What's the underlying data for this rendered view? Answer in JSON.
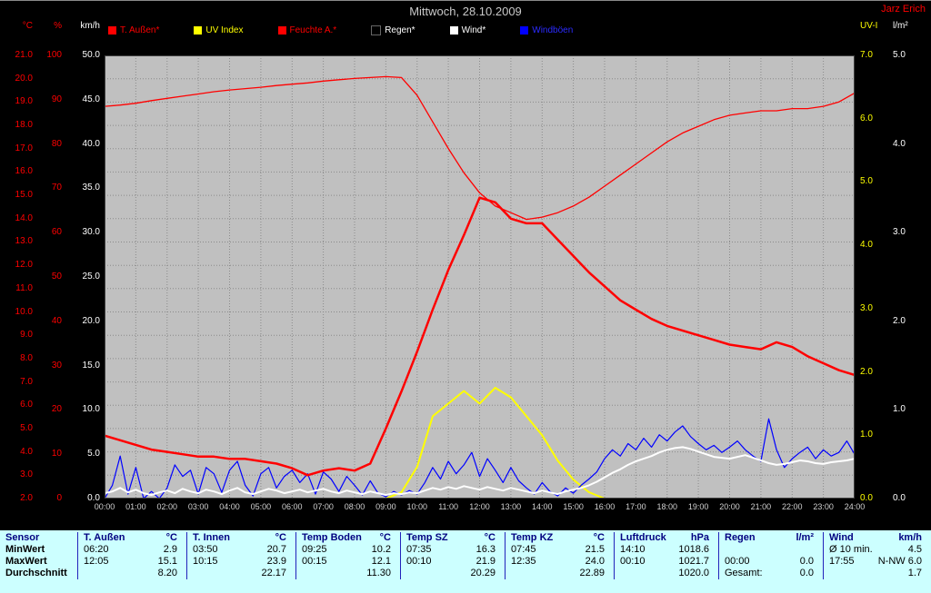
{
  "window": {
    "title": "Mittwoch, 28.10.2009",
    "author": "Jarz Erich"
  },
  "colors": {
    "background": "#000000",
    "plot_background": "#c0c0c0",
    "grid": "#8a8a8a",
    "table_background": "#ccffff",
    "table_divider": "#2222bb",
    "table_header_text": "#000080",
    "temperature_red": "#ff0000",
    "uv_yellow": "#ffff00",
    "wind_white": "#ffffff",
    "gust_blue": "#0000ff"
  },
  "axes": {
    "left": [
      {
        "title": "°C",
        "color": "#ff0000",
        "min": 2,
        "max": 21,
        "step": 1,
        "decimals": 1
      },
      {
        "title": "%",
        "color": "#ff0000",
        "min": 0,
        "max": 100,
        "step": 10,
        "decimals": 0
      },
      {
        "title": "km/h",
        "color": "#ffffff",
        "min": 0,
        "max": 50,
        "step": 5,
        "decimals": 1
      }
    ],
    "right": [
      {
        "title": "UV-I",
        "color": "#ffff00",
        "min": 0,
        "max": 7,
        "step": 1,
        "decimals": 1
      },
      {
        "title": "l/m²",
        "color": "#ffffff",
        "min": 0,
        "max": 5,
        "step": 1,
        "decimals": 1
      }
    ],
    "x": {
      "labels": [
        "00:00",
        "01:00",
        "02:00",
        "03:00",
        "04:00",
        "05:00",
        "06:00",
        "07:00",
        "08:00",
        "09:00",
        "10:00",
        "11:00",
        "12:00",
        "13:00",
        "14:00",
        "15:00",
        "16:00",
        "17:00",
        "18:00",
        "19:00",
        "20:00",
        "21:00",
        "22:00",
        "23:00",
        "24:00"
      ]
    }
  },
  "legend": [
    {
      "label": "T. Außen*",
      "color": "#ff0000",
      "text": "#ff0000"
    },
    {
      "label": "UV Index",
      "color": "#ffff00",
      "text": "#ffff00"
    },
    {
      "label": "Feuchte A.*",
      "color": "#ff0000",
      "text": "#ff0000"
    },
    {
      "label": "Regen*",
      "color": "#000000",
      "text": "#ffffff"
    },
    {
      "label": "Wind*",
      "color": "#ffffff",
      "text": "#ffffff"
    },
    {
      "label": "Windböen",
      "color": "#0000ff",
      "text": "#2b2bff"
    }
  ],
  "chart_data": {
    "type": "line",
    "title": "Mittwoch, 28.10.2009",
    "x_unit": "hours",
    "x_range": [
      0,
      24
    ],
    "grid": true,
    "legend_position": "top",
    "series": [
      {
        "name": "Regen",
        "unit": "l/m²",
        "color": "#000000",
        "width": 1.5,
        "axis_min": 0,
        "axis_max": 5,
        "step_h": 12,
        "values": [
          0,
          0,
          0
        ]
      },
      {
        "name": "UV Index",
        "unit": "UV-I",
        "color": "#ffff00",
        "width": 2,
        "axis_min": 0,
        "axis_max": 7,
        "step_h": 0.5,
        "values": [
          0,
          0,
          0,
          0,
          0,
          0,
          0,
          0,
          0,
          0,
          0,
          0,
          0,
          0,
          0,
          0,
          0,
          0,
          0,
          0.1,
          0.5,
          1.3,
          1.5,
          1.7,
          1.5,
          1.75,
          1.6,
          1.3,
          1.0,
          0.6,
          0.3,
          0.1,
          0,
          0,
          0,
          0,
          0,
          0,
          0,
          0,
          0,
          0,
          0,
          0,
          0,
          0,
          0,
          0,
          0
        ]
      },
      {
        "name": "Windböen",
        "unit": "km/h",
        "color": "#0000ff",
        "width": 1.2,
        "axis_min": 0,
        "axis_max": 50,
        "step_h": 0.25,
        "values": [
          0.0,
          1.5,
          4.8,
          0.5,
          3.5,
          0.0,
          0.8,
          0.0,
          1.2,
          3.8,
          2.5,
          3.2,
          0.5,
          3.5,
          2.8,
          0.7,
          3.2,
          4.2,
          1.5,
          0.3,
          2.8,
          3.5,
          1.2,
          2.5,
          3.2,
          1.8,
          2.8,
          0.5,
          3.0,
          2.2,
          0.8,
          2.5,
          1.5,
          0.4,
          2.0,
          0.6,
          0.2,
          0.8,
          0.4,
          0.9,
          0.5,
          1.8,
          3.5,
          2.2,
          4.2,
          2.8,
          3.8,
          5.2,
          2.5,
          4.5,
          3.2,
          1.8,
          3.5,
          2.0,
          1.2,
          0.5,
          1.8,
          0.8,
          0.3,
          1.2,
          0.6,
          1.5,
          2.2,
          3.0,
          4.5,
          5.5,
          4.8,
          6.2,
          5.5,
          6.8,
          5.8,
          7.2,
          6.5,
          7.5,
          8.2,
          7.0,
          6.2,
          5.5,
          6.0,
          5.2,
          5.8,
          6.5,
          5.5,
          4.8,
          4.2,
          9.0,
          5.5,
          3.5,
          4.5,
          5.2,
          5.8,
          4.5,
          5.5,
          4.8,
          5.2,
          6.5,
          5.0
        ]
      },
      {
        "name": "Wind",
        "unit": "km/h",
        "color": "#ffffff",
        "width": 2,
        "axis_min": 0,
        "axis_max": 50,
        "step_h": 0.25,
        "values": [
          0.6,
          0.8,
          1.2,
          0.7,
          1.0,
          0.6,
          0.4,
          0.7,
          0.9,
          0.6,
          1.1,
          0.8,
          0.6,
          1.0,
          0.8,
          0.5,
          0.9,
          1.2,
          0.7,
          0.5,
          0.8,
          1.1,
          0.9,
          0.6,
          0.8,
          1.0,
          0.7,
          0.9,
          1.1,
          0.8,
          0.6,
          0.9,
          0.7,
          0.5,
          0.8,
          0.6,
          0.4,
          0.6,
          0.5,
          0.7,
          0.6,
          0.9,
          1.2,
          1.0,
          1.3,
          1.1,
          1.4,
          1.2,
          1.0,
          1.3,
          1.1,
          0.9,
          1.2,
          1.0,
          0.8,
          0.6,
          0.9,
          0.7,
          0.5,
          0.8,
          1.0,
          1.2,
          1.5,
          1.9,
          2.4,
          2.9,
          3.3,
          3.8,
          4.2,
          4.5,
          4.8,
          5.2,
          5.5,
          5.7,
          5.8,
          5.6,
          5.3,
          5.0,
          4.7,
          4.6,
          4.5,
          4.7,
          4.9,
          4.6,
          4.3,
          4.0,
          3.8,
          3.9,
          4.1,
          4.3,
          4.2,
          4.0,
          3.9,
          4.1,
          4.2,
          4.3,
          4.5
        ]
      },
      {
        "name": "Feuchte A.",
        "unit": "%",
        "color": "#ff0000",
        "width": 1.3,
        "axis_min": 0,
        "axis_max": 100,
        "step_h": 0.5,
        "values": [
          88.5,
          88.8,
          89.2,
          89.8,
          90.3,
          90.8,
          91.3,
          91.8,
          92.2,
          92.5,
          92.8,
          93.2,
          93.5,
          93.8,
          94.2,
          94.5,
          94.8,
          95.0,
          95.2,
          95.0,
          91.0,
          85.0,
          79.0,
          73.5,
          69.0,
          66.0,
          64.5,
          63.0,
          63.5,
          64.5,
          66.0,
          68.0,
          70.5,
          73.0,
          75.5,
          78.0,
          80.5,
          82.5,
          84.0,
          85.5,
          86.5,
          87.0,
          87.5,
          87.5,
          88.0,
          88.0,
          88.5,
          89.5,
          91.5
        ]
      },
      {
        "name": "T. Außen",
        "unit": "°C",
        "color": "#ff0000",
        "width": 2.5,
        "axis_min": 2,
        "axis_max": 21,
        "step_h": 0.5,
        "values": [
          4.7,
          4.5,
          4.3,
          4.1,
          4.0,
          3.9,
          3.8,
          3.8,
          3.7,
          3.7,
          3.6,
          3.5,
          3.3,
          3.0,
          3.2,
          3.3,
          3.2,
          3.5,
          5.0,
          6.6,
          8.3,
          10.1,
          11.8,
          13.3,
          14.9,
          14.7,
          14.0,
          13.8,
          13.8,
          13.1,
          12.4,
          11.7,
          11.1,
          10.5,
          10.1,
          9.7,
          9.4,
          9.2,
          9.0,
          8.8,
          8.6,
          8.5,
          8.4,
          8.7,
          8.5,
          8.1,
          7.8,
          7.5,
          7.3
        ]
      }
    ]
  },
  "table": {
    "row_headers": {
      "sensor": "Sensor",
      "min": "MinWert",
      "max": "MaxWert",
      "avg": "Durchschnitt"
    },
    "columns": [
      {
        "name": "T. Außen",
        "unit": "°C",
        "min_time": "06:20",
        "min_val": "2.9",
        "max_time": "12:05",
        "max_val": "15.1",
        "avg_label": "",
        "avg": "8.20"
      },
      {
        "name": "T. Innen",
        "unit": "°C",
        "min_time": "03:50",
        "min_val": "20.7",
        "max_time": "10:15",
        "max_val": "23.9",
        "avg_label": "",
        "avg": "22.17"
      },
      {
        "name": "Temp Boden",
        "unit": "°C",
        "min_time": "09:25",
        "min_val": "10.2",
        "max_time": "00:15",
        "max_val": "12.1",
        "avg_label": "",
        "avg": "11.30"
      },
      {
        "name": "Temp SZ",
        "unit": "°C",
        "min_time": "07:35",
        "min_val": "16.3",
        "max_time": "00:10",
        "max_val": "21.9",
        "avg_label": "",
        "avg": "20.29"
      },
      {
        "name": "Temp KZ",
        "unit": "°C",
        "min_time": "07:45",
        "min_val": "21.5",
        "max_time": "12:35",
        "max_val": "24.0",
        "avg_label": "",
        "avg": "22.89"
      },
      {
        "name": "Luftdruck",
        "unit": "hPa",
        "min_time": "14:10",
        "min_val": "1018.6",
        "max_time": "00:10",
        "max_val": "1021.7",
        "avg_label": "",
        "avg": "1020.0"
      },
      {
        "name": "Regen",
        "unit": "l/m²",
        "min_time": "",
        "min_val": "",
        "max_time": "00:00",
        "max_val": "0.0",
        "avg_label": "Gesamt:",
        "avg": "0.0"
      },
      {
        "name": "Wind",
        "unit": "km/h",
        "min_time": "Ø 10 min.",
        "min_val": "4.5",
        "max_time": "17:55",
        "max_val": "N-NW 6.0",
        "avg_label": "",
        "avg": "1.7"
      }
    ]
  }
}
